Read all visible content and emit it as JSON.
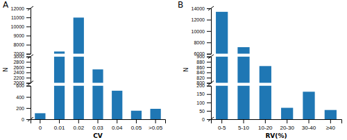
{
  "chart_data": [
    {
      "type": "bar",
      "title": "A",
      "categories": [
        "0",
        "0.01",
        "0.02",
        "0.03",
        "0.04",
        "0.05",
        ">0.05"
      ],
      "values": [
        107,
        7252,
        10981,
        2513,
        510,
        152,
        186
      ],
      "x_label": "CV",
      "y_label": "N",
      "y_breaks": [
        {
          "ylim": [
            0,
            600
          ],
          "yticks": [
            0,
            200,
            400,
            600
          ]
        },
        {
          "ylim": [
            2000,
            3000
          ],
          "yticks": [
            2000,
            2200,
            2400,
            2600,
            2800,
            3000
          ]
        },
        {
          "ylim": [
            7000,
            12000
          ],
          "yticks": [
            7000,
            8000,
            9000,
            10000,
            11000,
            12000
          ]
        }
      ]
    },
    {
      "type": "bar",
      "title": "B",
      "categories": [
        "0-5",
        "5-10",
        "10-20",
        "20-30",
        "30-40",
        "≥40"
      ],
      "values": [
        13383,
        7167,
        864,
        68,
        164,
        55
      ],
      "x_label": "RV(%)",
      "y_label": "N",
      "y_breaks": [
        {
          "ylim": [
            0,
            200
          ],
          "yticks": [
            0,
            50,
            100,
            150,
            200
          ]
        },
        {
          "ylim": [
            800,
            900
          ],
          "yticks": [
            800,
            820,
            840,
            860,
            880,
            900
          ]
        },
        {
          "ylim": [
            6000,
            14000
          ],
          "yticks": [
            6000,
            8000,
            10000,
            12000,
            14000
          ]
        }
      ]
    }
  ]
}
